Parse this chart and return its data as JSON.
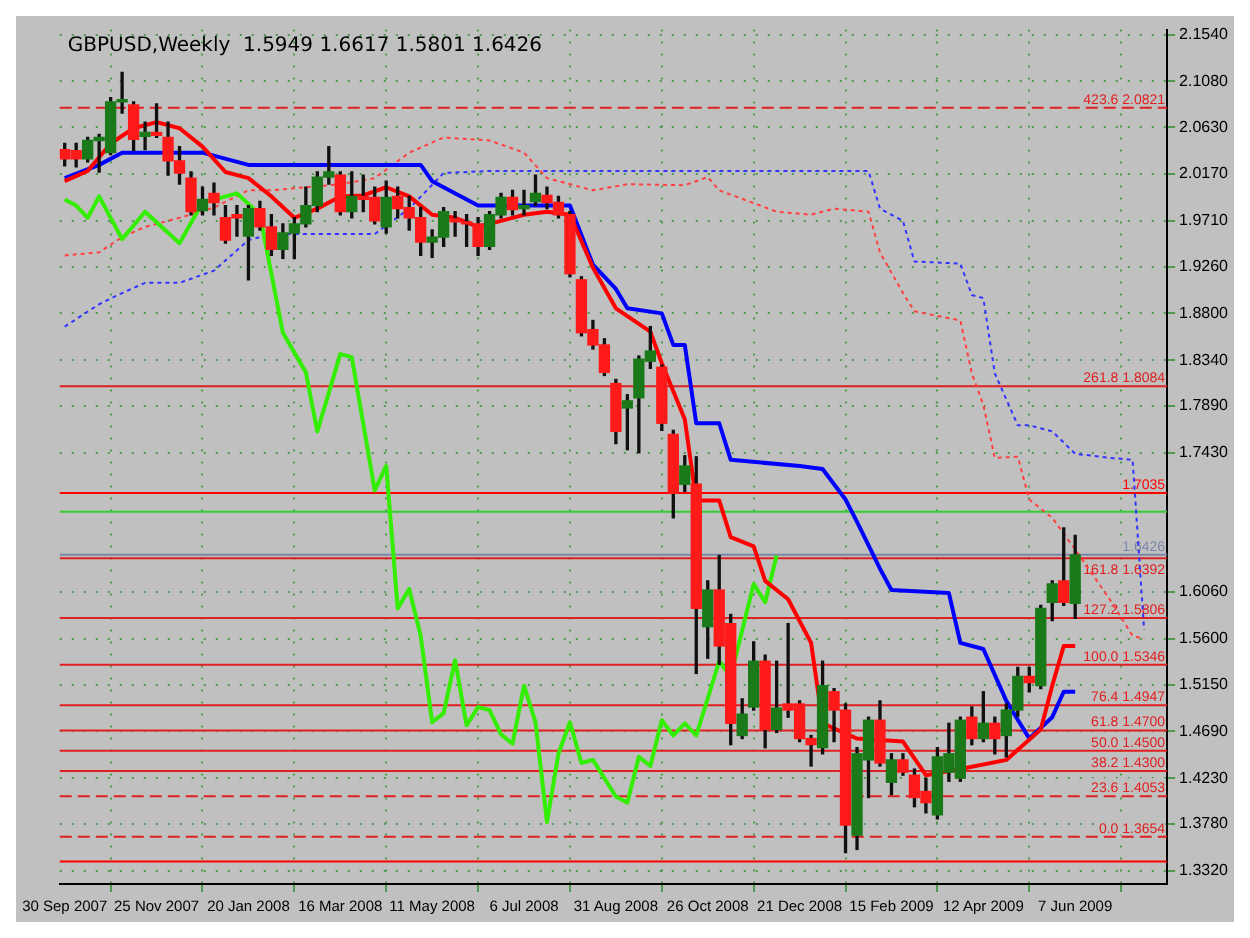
{
  "chart_data": {
    "type": "candlestick",
    "title": "GBPUSD,Weekly  1.5949 1.6617 1.5801 1.6426",
    "x": [
      "2007-09-30",
      "2007-10-07",
      "2007-10-14",
      "2007-10-21",
      "2007-10-28",
      "2007-11-04",
      "2007-11-11",
      "2007-11-18",
      "2007-11-25",
      "2007-12-02",
      "2007-12-09",
      "2007-12-16",
      "2007-12-23",
      "2007-12-30",
      "2008-01-06",
      "2008-01-13",
      "2008-01-20",
      "2008-01-27",
      "2008-02-03",
      "2008-02-10",
      "2008-02-17",
      "2008-02-24",
      "2008-03-02",
      "2008-03-09",
      "2008-03-16",
      "2008-03-23",
      "2008-03-30",
      "2008-04-06",
      "2008-04-13",
      "2008-04-20",
      "2008-04-27",
      "2008-05-04",
      "2008-05-11",
      "2008-05-18",
      "2008-05-25",
      "2008-06-01",
      "2008-06-08",
      "2008-06-15",
      "2008-06-22",
      "2008-06-29",
      "2008-07-06",
      "2008-07-13",
      "2008-07-20",
      "2008-07-27",
      "2008-08-03",
      "2008-08-10",
      "2008-08-17",
      "2008-08-24",
      "2008-08-31",
      "2008-09-07",
      "2008-09-14",
      "2008-09-21",
      "2008-09-28",
      "2008-10-05",
      "2008-10-12",
      "2008-10-19",
      "2008-10-26",
      "2008-11-02",
      "2008-11-09",
      "2008-11-16",
      "2008-11-23",
      "2008-11-30",
      "2008-12-07",
      "2008-12-14",
      "2008-12-21",
      "2008-12-28",
      "2009-01-04",
      "2009-01-11",
      "2009-01-18",
      "2009-01-25",
      "2009-02-01",
      "2009-02-08",
      "2009-02-15",
      "2009-02-22",
      "2009-03-01",
      "2009-03-08",
      "2009-03-15",
      "2009-03-22",
      "2009-03-29",
      "2009-04-05",
      "2009-04-12",
      "2009-04-19",
      "2009-04-26",
      "2009-05-03",
      "2009-05-10",
      "2009-05-17",
      "2009-05-24",
      "2009-05-31",
      "2009-06-07"
    ],
    "ohlc": [
      [
        2.041,
        2.047,
        2.025,
        2.032
      ],
      [
        2.04,
        2.047,
        2.024,
        2.032
      ],
      [
        2.032,
        2.053,
        2.029,
        2.05
      ],
      [
        2.05,
        2.056,
        2.019,
        2.053
      ],
      [
        2.038,
        2.092,
        2.036,
        2.088
      ],
      [
        2.088,
        2.117,
        2.077,
        2.09
      ],
      [
        2.085,
        2.088,
        2.04,
        2.051
      ],
      [
        2.054,
        2.068,
        2.041,
        2.058
      ],
      [
        2.058,
        2.086,
        2.053,
        2.055
      ],
      [
        2.053,
        2.068,
        2.016,
        2.03
      ],
      [
        2.03,
        2.044,
        2.007,
        2.018
      ],
      [
        2.013,
        2.019,
        1.977,
        1.98
      ],
      [
        1.981,
        2.004,
        1.977,
        1.992
      ],
      [
        1.998,
        2.008,
        1.977,
        1.989
      ],
      [
        1.974,
        1.986,
        1.949,
        1.952
      ],
      [
        1.977,
        1.986,
        1.956,
        1.974
      ],
      [
        1.956,
        1.986,
        1.913,
        1.983
      ],
      [
        1.983,
        1.99,
        1.962,
        1.965
      ],
      [
        1.965,
        1.977,
        1.937,
        1.943
      ],
      [
        1.943,
        1.968,
        1.934,
        1.959
      ],
      [
        1.959,
        1.974,
        1.934,
        1.968
      ],
      [
        1.968,
        2.004,
        1.965,
        1.986
      ],
      [
        1.986,
        2.019,
        1.98,
        2.014
      ],
      [
        2.014,
        2.044,
        2.007,
        2.019
      ],
      [
        2.016,
        2.019,
        1.977,
        1.98
      ],
      [
        1.98,
        2.019,
        1.974,
        1.995
      ],
      [
        1.995,
        2.016,
        1.98,
        1.992
      ],
      [
        1.994,
        2.004,
        1.968,
        1.971
      ],
      [
        1.965,
        2.01,
        1.959,
        1.994
      ],
      [
        1.995,
        2.004,
        1.974,
        1.983
      ],
      [
        1.984,
        1.995,
        1.962,
        1.974
      ],
      [
        1.974,
        1.984,
        1.937,
        1.95
      ],
      [
        1.95,
        1.962,
        1.935,
        1.955
      ],
      [
        1.955,
        1.984,
        1.946,
        1.98
      ],
      [
        1.973,
        1.98,
        1.956,
        1.97
      ],
      [
        1.97,
        1.977,
        1.946,
        1.968
      ],
      [
        1.968,
        1.974,
        1.937,
        1.946
      ],
      [
        1.946,
        1.98,
        1.943,
        1.977
      ],
      [
        1.977,
        1.998,
        1.974,
        1.994
      ],
      [
        1.994,
        2.001,
        1.977,
        1.982
      ],
      [
        1.983,
        2.001,
        1.977,
        1.986
      ],
      [
        1.99,
        2.016,
        1.986,
        1.998
      ],
      [
        1.996,
        2.004,
        1.983,
        1.989
      ],
      [
        1.989,
        1.995,
        1.974,
        1.977
      ],
      [
        1.977,
        1.98,
        1.916,
        1.919
      ],
      [
        1.913,
        1.916,
        1.858,
        1.861
      ],
      [
        1.864,
        1.873,
        1.845,
        1.849
      ],
      [
        1.849,
        1.855,
        1.819,
        1.822
      ],
      [
        1.811,
        1.815,
        1.752,
        1.764
      ],
      [
        1.787,
        1.8,
        1.746,
        1.794
      ],
      [
        1.797,
        1.838,
        1.743,
        1.835
      ],
      [
        1.833,
        1.867,
        1.826,
        1.843
      ],
      [
        1.827,
        1.829,
        1.765,
        1.772
      ],
      [
        1.761,
        1.765,
        1.679,
        1.703
      ],
      [
        1.712,
        1.74,
        1.705,
        1.73
      ],
      [
        1.712,
        1.739,
        1.526,
        1.59
      ],
      [
        1.572,
        1.617,
        1.541,
        1.608
      ],
      [
        1.608,
        1.642,
        1.535,
        1.553
      ],
      [
        1.575,
        1.584,
        1.456,
        1.477
      ],
      [
        1.465,
        1.501,
        1.462,
        1.486
      ],
      [
        1.493,
        1.557,
        1.49,
        1.538
      ],
      [
        1.538,
        1.544,
        1.453,
        1.471
      ],
      [
        1.471,
        1.538,
        1.468,
        1.492
      ],
      [
        1.496,
        1.575,
        1.483,
        1.49
      ],
      [
        1.496,
        1.499,
        1.459,
        1.462
      ],
      [
        1.462,
        1.465,
        1.435,
        1.456
      ],
      [
        1.453,
        1.538,
        1.447,
        1.514
      ],
      [
        1.508,
        1.511,
        1.459,
        1.49
      ],
      [
        1.49,
        1.496,
        1.35,
        1.377
      ],
      [
        1.367,
        1.453,
        1.353,
        1.447
      ],
      [
        1.441,
        1.483,
        1.404,
        1.48
      ],
      [
        1.48,
        1.499,
        1.435,
        1.438
      ],
      [
        1.419,
        1.447,
        1.407,
        1.441
      ],
      [
        1.441,
        1.447,
        1.426,
        1.429
      ],
      [
        1.426,
        1.432,
        1.395,
        1.404
      ],
      [
        1.41,
        1.423,
        1.389,
        1.399
      ],
      [
        1.387,
        1.453,
        1.383,
        1.444
      ],
      [
        1.429,
        1.477,
        1.42,
        1.447
      ],
      [
        1.423,
        1.483,
        1.42,
        1.48
      ],
      [
        1.483,
        1.493,
        1.456,
        1.462
      ],
      [
        1.462,
        1.508,
        1.459,
        1.477
      ],
      [
        1.477,
        1.483,
        1.447,
        1.462
      ],
      [
        1.465,
        1.496,
        1.444,
        1.49
      ],
      [
        1.49,
        1.532,
        1.484,
        1.523
      ],
      [
        1.523,
        1.532,
        1.508,
        1.517
      ],
      [
        1.514,
        1.593,
        1.511,
        1.59
      ],
      [
        1.596,
        1.617,
        1.578,
        1.614
      ],
      [
        1.617,
        1.669,
        1.593,
        1.596
      ],
      [
        1.5949,
        1.6617,
        1.5801,
        1.6426
      ]
    ],
    "series": [
      {
        "type": "line",
        "color": "#ff0000",
        "line_style": "solid",
        "x": [
          "2007-09-30",
          "2007-10-14",
          "2007-10-28",
          "2007-11-11",
          "2007-11-25",
          "2007-12-09",
          "2007-12-23",
          "2008-01-06",
          "2008-01-20",
          "2008-02-03",
          "2008-02-17",
          "2008-03-02",
          "2008-03-16",
          "2008-03-30",
          "2008-04-13",
          "2008-04-27",
          "2008-05-11",
          "2008-05-25",
          "2008-06-08",
          "2008-06-22",
          "2008-07-06",
          "2008-07-20",
          "2008-08-03",
          "2008-08-17",
          "2008-08-31",
          "2008-09-21",
          "2008-09-28",
          "2008-10-12",
          "2008-10-19",
          "2008-11-02",
          "2008-11-09",
          "2008-11-23",
          "2008-11-30",
          "2008-12-14",
          "2008-12-28",
          "2009-01-04",
          "2009-01-25",
          "2009-02-22",
          "2009-03-08",
          "2009-03-29",
          "2009-04-26",
          "2009-05-17",
          "2009-05-24",
          "2009-05-31",
          "2009-06-07"
        ],
        "values": [
          2.01,
          2.02,
          2.047,
          2.062,
          2.068,
          2.062,
          2.044,
          2.019,
          2.013,
          1.995,
          1.974,
          1.983,
          1.995,
          1.996,
          2.004,
          1.995,
          1.977,
          1.974,
          1.965,
          1.971,
          1.977,
          1.98,
          1.977,
          1.925,
          1.885,
          1.862,
          1.831,
          1.776,
          1.696,
          1.696,
          1.66,
          1.651,
          1.617,
          1.599,
          1.556,
          1.477,
          1.462,
          1.459,
          1.426,
          1.432,
          1.441,
          1.471,
          1.514,
          1.553,
          1.553
        ]
      },
      {
        "type": "line",
        "color": "#0000ff",
        "line_style": "solid",
        "x": [
          "2007-09-30",
          "2007-10-21",
          "2007-11-04",
          "2007-12-23",
          "2008-01-20",
          "2008-05-04",
          "2008-05-11",
          "2008-06-08",
          "2008-08-03",
          "2008-08-17",
          "2008-08-31",
          "2008-09-07",
          "2008-09-28",
          "2008-10-05",
          "2008-10-12",
          "2008-10-19",
          "2008-11-02",
          "2008-11-09",
          "2008-12-21",
          "2009-01-04",
          "2009-01-18",
          "2009-01-25",
          "2009-02-08",
          "2009-02-15",
          "2009-03-22",
          "2009-03-29",
          "2009-04-12",
          "2009-04-26",
          "2009-05-10",
          "2009-05-24",
          "2009-05-31",
          "2009-06-07"
        ],
        "values": [
          2.013,
          2.026,
          2.038,
          2.038,
          2.026,
          2.026,
          2.01,
          1.986,
          1.986,
          1.928,
          1.904,
          1.885,
          1.88,
          1.849,
          1.849,
          1.772,
          1.772,
          1.736,
          1.73,
          1.727,
          1.697,
          1.675,
          1.629,
          1.608,
          1.605,
          1.556,
          1.55,
          1.499,
          1.462,
          1.483,
          1.508,
          1.508
        ]
      },
      {
        "type": "line",
        "color": "#33ee00",
        "line_style": "solid",
        "x": [
          "2007-09-30",
          "2007-10-07",
          "2007-10-14",
          "2007-10-21",
          "2007-11-04",
          "2007-11-18",
          "2007-12-09",
          "2007-12-23",
          "2008-01-13",
          "2008-01-27",
          "2008-02-10",
          "2008-02-24",
          "2008-03-02",
          "2008-03-16",
          "2008-03-23",
          "2008-04-06",
          "2008-04-13",
          "2008-04-20",
          "2008-04-27",
          "2008-05-04",
          "2008-05-11",
          "2008-05-18",
          "2008-05-25",
          "2008-06-01",
          "2008-06-08",
          "2008-06-15",
          "2008-06-22",
          "2008-06-29",
          "2008-07-06",
          "2008-07-13",
          "2008-07-20",
          "2008-07-27",
          "2008-08-03",
          "2008-08-10",
          "2008-08-17",
          "2008-08-31",
          "2008-09-07",
          "2008-09-14",
          "2008-09-21",
          "2008-09-28",
          "2008-10-05",
          "2008-10-12",
          "2008-10-19",
          "2008-11-02",
          "2008-11-09",
          "2008-11-23",
          "2008-11-30",
          "2008-12-07"
        ],
        "values": [
          1.992,
          1.986,
          1.974,
          1.995,
          1.953,
          1.98,
          1.949,
          1.989,
          1.998,
          1.977,
          1.861,
          1.822,
          1.764,
          1.84,
          1.837,
          1.706,
          1.73,
          1.59,
          1.609,
          1.563,
          1.478,
          1.487,
          1.539,
          1.475,
          1.493,
          1.49,
          1.466,
          1.457,
          1.514,
          1.478,
          1.38,
          1.447,
          1.478,
          1.438,
          1.441,
          1.405,
          1.399,
          1.444,
          1.435,
          1.48,
          1.465,
          1.477,
          1.465,
          1.538,
          1.523,
          1.614,
          1.596,
          1.642
        ]
      },
      {
        "type": "line",
        "color": "#ff4040",
        "line_style": "dotted",
        "x": [
          "2007-09-30",
          "2007-10-21",
          "2007-11-04",
          "2007-11-18",
          "2007-12-09",
          "2007-12-30",
          "2008-01-20",
          "2008-02-03",
          "2008-02-24",
          "2008-03-16",
          "2008-04-06",
          "2008-04-27",
          "2008-05-18",
          "2008-06-15",
          "2008-07-06",
          "2008-07-20",
          "2008-08-17",
          "2008-09-07",
          "2008-10-12",
          "2008-10-26",
          "2008-11-02",
          "2008-12-07",
          "2008-12-28",
          "2009-01-11",
          "2009-02-01",
          "2009-02-08",
          "2009-02-22",
          "2009-03-01",
          "2009-03-29",
          "2009-04-05",
          "2009-04-12",
          "2009-04-19",
          "2009-05-03",
          "2009-05-10",
          "2009-05-24",
          "2009-06-07",
          "2009-06-28",
          "2009-07-12",
          "2009-07-19"
        ],
        "values": [
          1.937,
          1.94,
          1.955,
          1.965,
          1.974,
          1.984,
          2.001,
          2.001,
          2.004,
          2.007,
          2.013,
          2.038,
          2.053,
          2.05,
          2.038,
          2.013,
          2.001,
          2.007,
          2.006,
          2.014,
          2.001,
          1.98,
          1.977,
          1.983,
          1.98,
          1.94,
          1.9,
          1.882,
          1.873,
          1.821,
          1.79,
          1.738,
          1.739,
          1.697,
          1.679,
          1.648,
          1.599,
          1.563,
          1.56
        ]
      },
      {
        "type": "line",
        "color": "#3333ff",
        "line_style": "dotted",
        "x": [
          "2007-09-30",
          "2007-10-21",
          "2007-11-04",
          "2007-11-18",
          "2007-12-09",
          "2007-12-30",
          "2008-01-20",
          "2008-02-03",
          "2008-02-24",
          "2008-03-16",
          "2008-04-06",
          "2008-04-27",
          "2008-05-18",
          "2008-06-15",
          "2008-07-06",
          "2008-07-20",
          "2008-08-17",
          "2008-09-07",
          "2008-10-12",
          "2008-10-26",
          "2008-11-02",
          "2008-12-07",
          "2008-12-28",
          "2009-01-11",
          "2009-02-01",
          "2009-02-08",
          "2009-02-22",
          "2009-03-01",
          "2009-03-29",
          "2009-04-05",
          "2009-04-12",
          "2009-04-19",
          "2009-05-03",
          "2009-05-10",
          "2009-05-24",
          "2009-06-07",
          "2009-06-28",
          "2009-07-12",
          "2009-07-19"
        ],
        "values": [
          1.867,
          1.889,
          1.9,
          1.91,
          1.91,
          1.922,
          1.952,
          1.958,
          1.958,
          1.958,
          1.958,
          1.983,
          2.018,
          2.02,
          2.02,
          2.02,
          2.02,
          2.02,
          2.02,
          2.02,
          2.02,
          2.02,
          2.02,
          2.02,
          2.02,
          1.983,
          1.971,
          1.931,
          1.929,
          1.898,
          1.895,
          1.821,
          1.77,
          1.77,
          1.764,
          1.742,
          1.738,
          1.736,
          1.569
        ]
      }
    ],
    "xlim": [
      "2007-09-27",
      "2009-08-02"
    ],
    "xticks": [
      {
        "value": "2007-09-30",
        "label": "30 Sep 2007"
      },
      {
        "value": "2007-11-25",
        "label": "25 Nov 2007"
      },
      {
        "value": "2008-01-20",
        "label": "20 Jan 2008"
      },
      {
        "value": "2008-03-16",
        "label": "16 Mar 2008"
      },
      {
        "value": "2008-05-11",
        "label": "11 May 2008"
      },
      {
        "value": "2008-07-06",
        "label": "6 Jul 2008"
      },
      {
        "value": "2008-08-31",
        "label": "31 Aug 2008"
      },
      {
        "value": "2008-10-26",
        "label": "26 Oct 2008"
      },
      {
        "value": "2008-12-21",
        "label": "21 Dec 2008"
      },
      {
        "value": "2009-02-15",
        "label": "15 Feb 2009"
      },
      {
        "value": "2009-04-12",
        "label": "12 Apr 2009"
      },
      {
        "value": "2009-06-07",
        "label": "7 Jun 2009"
      }
    ],
    "ylim": [
      1.319,
      2.159
    ],
    "yticks": [
      {
        "value": 2.154,
        "label": "2.1540"
      },
      {
        "value": 2.108,
        "label": "2.1080"
      },
      {
        "value": 2.063,
        "label": "2.0630"
      },
      {
        "value": 2.017,
        "label": "2.0170"
      },
      {
        "value": 1.971,
        "label": "1.9710"
      },
      {
        "value": 1.926,
        "label": "1.9260"
      },
      {
        "value": 1.88,
        "label": "1.8800"
      },
      {
        "value": 1.834,
        "label": "1.8340"
      },
      {
        "value": 1.789,
        "label": "1.7890"
      },
      {
        "value": 1.743,
        "label": "1.7430"
      },
      {
        "value": 1.606,
        "label": "1.6060"
      },
      {
        "value": 1.56,
        "label": "1.5600"
      },
      {
        "value": 1.515,
        "label": "1.5150"
      },
      {
        "value": 1.469,
        "label": "1.4690"
      },
      {
        "value": 1.423,
        "label": "1.4230"
      },
      {
        "value": 1.378,
        "label": "1.3780"
      },
      {
        "value": 1.332,
        "label": "1.3320"
      }
    ],
    "ref_lines": [
      {
        "axis": "y",
        "value": 2.0821,
        "label": "423.6 2.0821",
        "color": "#e02020",
        "line_style": "dashed"
      },
      {
        "axis": "y",
        "value": 1.8084,
        "label": "261.8 1.8084",
        "color": "#e02020",
        "line_style": "solid"
      },
      {
        "axis": "y",
        "value": 1.7035,
        "label": "1.7035",
        "color": "#ff0000",
        "line_style": "solid"
      },
      {
        "axis": "y",
        "value": 1.685,
        "label": null,
        "color": "#33cc33",
        "line_style": "solid"
      },
      {
        "axis": "y",
        "value": 1.6426,
        "label": "1.6426",
        "color": "#7c86a8",
        "line_style": "solid"
      },
      {
        "axis": "y",
        "value": 1.6392,
        "label": "161.8 1.6392",
        "color": "#e02020",
        "line_style": "solid"
      },
      {
        "axis": "y",
        "value": 1.5806,
        "label": "127.2 1.5806",
        "color": "#e02020",
        "line_style": "solid"
      },
      {
        "axis": "y",
        "value": 1.5346,
        "label": "100.0 1.5346",
        "color": "#e02020",
        "line_style": "solid"
      },
      {
        "axis": "y",
        "value": 1.4947,
        "label": "76.4 1.4947",
        "color": "#e02020",
        "line_style": "solid"
      },
      {
        "axis": "y",
        "value": 1.47,
        "label": "61.8 1.4700",
        "color": "#e02020",
        "line_style": "solid"
      },
      {
        "axis": "y",
        "value": 1.45,
        "label": "50.0 1.4500",
        "color": "#e02020",
        "line_style": "solid"
      },
      {
        "axis": "y",
        "value": 1.43,
        "label": "38.2 1.4300",
        "color": "#e02020",
        "line_style": "solid"
      },
      {
        "axis": "y",
        "value": 1.4053,
        "label": "23.6 1.4053",
        "color": "#e02020",
        "line_style": "dashed"
      },
      {
        "axis": "y",
        "value": 1.3654,
        "label": "0.0 1.3654",
        "color": "#e02020",
        "line_style": "dashed"
      },
      {
        "axis": "y",
        "value": 1.341,
        "label": null,
        "color": "#ff0000",
        "line_style": "solid"
      }
    ],
    "grid": true
  }
}
